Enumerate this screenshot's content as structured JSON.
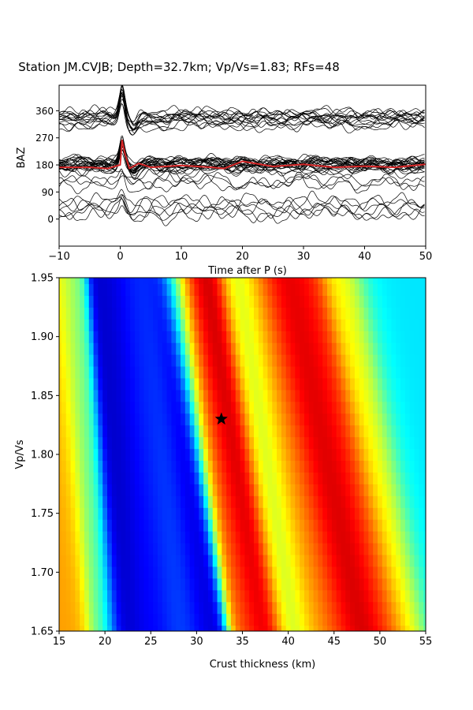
{
  "title": "Station JM.CVJB; Depth=32.7km; Vp/Vs=1.83; RFs=48",
  "chart_data": [
    {
      "type": "line",
      "xlabel": "Time after P (s)",
      "ylabel": "BAZ",
      "xlim": [
        -10,
        50
      ],
      "ylim": [
        -90,
        445
      ],
      "x_ticks": [
        "−10",
        "0",
        "10",
        "20",
        "30",
        "40",
        "50"
      ],
      "y_ticks": [
        "0",
        "90",
        "180",
        "270",
        "360"
      ],
      "trace_count": 48,
      "trace_color": "#000000",
      "stack_color": "#d62728",
      "stack_baz": 175,
      "series": [
        {
          "values": [
            {
              "x": -10,
              "y": 172
            },
            {
              "x": -5,
              "y": 172
            },
            {
              "x": -2,
              "y": 168
            },
            {
              "x": 0,
              "y": 180
            },
            {
              "x": 0.3,
              "y": 262
            },
            {
              "x": 0.8,
              "y": 215
            },
            {
              "x": 1.5,
              "y": 168
            },
            {
              "x": 3,
              "y": 185
            },
            {
              "x": 5,
              "y": 172
            },
            {
              "x": 10,
              "y": 178
            },
            {
              "x": 15,
              "y": 172
            },
            {
              "x": 17,
              "y": 168
            },
            {
              "x": 20,
              "y": 192
            },
            {
              "x": 25,
              "y": 175
            },
            {
              "x": 30,
              "y": 182
            },
            {
              "x": 35,
              "y": 172
            },
            {
              "x": 40,
              "y": 176
            },
            {
              "x": 45,
              "y": 172
            },
            {
              "x": 50,
              "y": 182
            }
          ]
        }
      ]
    },
    {
      "type": "heatmap",
      "xlabel": "Crust thickness (km)",
      "ylabel": "Vp/Vs",
      "xlim": [
        15,
        55
      ],
      "ylim": [
        1.65,
        1.95
      ],
      "x_ticks": [
        "15",
        "20",
        "25",
        "30",
        "35",
        "40",
        "45",
        "50",
        "55"
      ],
      "y_ticks": [
        "1.65",
        "1.70",
        "1.75",
        "1.80",
        "1.85",
        "1.90",
        "1.95"
      ],
      "colormap": "jet",
      "best_point": {
        "x": 32.7,
        "y": 1.83
      },
      "marker": "star",
      "grid_h_values": [
        15,
        15.5,
        16,
        16.5,
        17,
        17.5,
        18,
        18.5,
        19,
        19.5,
        20,
        20.5,
        21,
        21.5,
        22,
        22.5,
        23,
        23.5,
        24,
        24.5,
        25,
        25.5,
        26,
        26.5,
        27,
        27.5,
        28,
        28.5,
        29,
        29.5,
        30,
        30.5,
        31,
        31.5,
        32,
        32.5,
        33,
        33.5,
        34,
        34.5,
        35,
        35.5,
        36,
        36.5,
        37,
        37.5,
        38,
        38.5,
        39,
        39.5,
        40,
        40.5,
        41,
        41.5,
        42,
        42.5,
        43,
        43.5,
        44,
        44.5,
        45,
        45.5,
        46,
        46.5,
        47,
        47.5,
        48,
        48.5,
        49,
        49.5,
        50,
        50.5,
        51,
        51.5,
        52,
        52.5,
        53,
        53.5,
        54,
        54.5,
        55
      ],
      "grid_k_values": [
        1.65,
        1.66,
        1.67,
        1.68,
        1.69,
        1.7,
        1.71,
        1.72,
        1.73,
        1.74,
        1.75,
        1.76,
        1.77,
        1.78,
        1.79,
        1.8,
        1.81,
        1.82,
        1.83,
        1.84,
        1.85,
        1.86,
        1.87,
        1.88,
        1.89,
        1.9,
        1.91,
        1.92,
        1.93,
        1.94,
        1.95
      ],
      "bands": [
        {
          "h_at_1.65": 17.0,
          "h_at_1.95": 14.8,
          "width": 1.0,
          "level": 0.72
        },
        {
          "h_at_1.65": 19.5,
          "h_at_1.95": 15.8,
          "width": 1.2,
          "level": 0.48
        },
        {
          "h_at_1.65": 22.0,
          "h_at_1.95": 20.5,
          "width": 1.2,
          "level": 0.06
        },
        {
          "h_at_1.65": 25.0,
          "h_at_1.95": 22.5,
          "width": 1.6,
          "level": 0.12
        },
        {
          "h_at_1.65": 29.0,
          "h_at_1.95": 24.0,
          "width": 1.8,
          "level": 0.2
        },
        {
          "h_at_1.65": 31.3,
          "h_at_1.95": 26.8,
          "width": 1.3,
          "level": 0.05
        },
        {
          "h_at_1.65": 35.2,
          "h_at_1.95": 28.2,
          "width": 1.2,
          "level": 0.72
        },
        {
          "h_at_1.65": 36.5,
          "h_at_1.95": 29.8,
          "width": 1.4,
          "level": 0.9
        },
        {
          "h_at_1.65": 38.0,
          "h_at_1.95": 31.8,
          "width": 1.6,
          "level": 0.97
        },
        {
          "h_at_1.65": 40.0,
          "h_at_1.95": 34.3,
          "width": 1.3,
          "level": 0.42
        },
        {
          "h_at_1.65": 42.5,
          "h_at_1.95": 35.8,
          "width": 1.6,
          "level": 0.65
        },
        {
          "h_at_1.65": 45.0,
          "h_at_1.95": 37.8,
          "width": 2.0,
          "level": 0.82
        },
        {
          "h_at_1.65": 48.2,
          "h_at_1.95": 39.8,
          "width": 1.6,
          "level": 0.96
        },
        {
          "h_at_1.65": 50.5,
          "h_at_1.95": 42.0,
          "width": 1.4,
          "level": 0.85
        },
        {
          "h_at_1.65": 53.0,
          "h_at_1.95": 46.0,
          "width": 1.8,
          "level": 0.62
        },
        {
          "h_at_1.65": 56.5,
          "h_at_1.95": 49.5,
          "width": 1.5,
          "level": 0.35
        }
      ]
    }
  ]
}
